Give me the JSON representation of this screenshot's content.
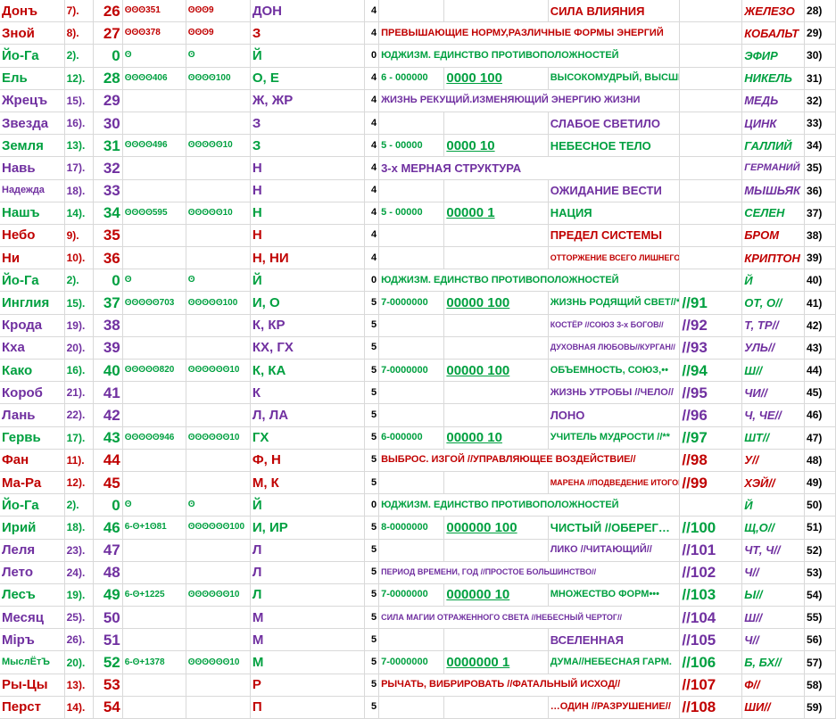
{
  "colors": {
    "red": "#c00000",
    "green": "#00a040",
    "purple": "#7030a0"
  },
  "rows": [
    {
      "name": "Донъ",
      "nc": "red",
      "idx": "7).",
      "ic": "red",
      "num": "26",
      "numc": "red",
      "b1": "ʘʘʘ351",
      "b2": "ʘʘʘ9",
      "letter": "ДОН",
      "lc": "purple",
      "five": "4",
      "code": "",
      "kc": "",
      "ul": "",
      "uc": "",
      "meaning": "",
      "mc": "",
      "m2": "СИЛА ВЛИЯНИЯ",
      "m2c": "red",
      "slash": "",
      "sc": "",
      "right": "ЖЕЛЕЗО",
      "rc": "red",
      "end": "28)"
    },
    {
      "name": "Зной",
      "nc": "red",
      "idx": "8).",
      "ic": "red",
      "num": "27",
      "numc": "red",
      "b1": "ʘʘʘ378",
      "b2": "ʘʘʘ9",
      "letter": "З",
      "lc": "red",
      "five": "4",
      "code": "",
      "kc": "",
      "ul": "",
      "uc": "",
      "meaning": "ПРЕВЫШАЮЩИЕ НОРМУ,РАЗЛИЧНЫЕ ФОРМЫ ЭНЕРГИЙ",
      "mc": "red",
      "m2": "",
      "m2c": "",
      "slash": "",
      "sc": "",
      "right": "КОБАЛЬТ",
      "rc": "red",
      "end": "29)"
    },
    {
      "name": "Йо-Га",
      "nc": "green",
      "idx": "2).",
      "ic": "green",
      "num": "0",
      "numc": "green",
      "b1": "ʘ",
      "b2": "ʘ",
      "letter": "Й",
      "lc": "green",
      "five": "0",
      "code": "",
      "kc": "",
      "ul": "",
      "uc": "",
      "meaning": "ЮДЖИЗМ. ЕДИНСТВО ПРОТИВОПОЛОЖНОСТЕЙ",
      "mc": "green",
      "m2": "",
      "m2c": "",
      "slash": "",
      "sc": "",
      "right": "ЭФИР",
      "rc": "green",
      "end": "30)"
    },
    {
      "name": "Ель",
      "nc": "green",
      "idx": "12).",
      "ic": "green",
      "num": "28",
      "numc": "green",
      "b1": "ʘʘʘʘ406",
      "b2": "ʘʘʘʘ100",
      "letter": "О, Е",
      "lc": "green",
      "five": "4",
      "code": "6 - 000000",
      "kc": "green",
      "ul": "0000 100",
      "uc": "green",
      "meaning": "",
      "mc": "",
      "m2": "ВЫСОКОМУДРЫЙ, ВЫСШИЙ",
      "m2c": "green",
      "slash": "",
      "sc": "",
      "right": "НИКЕЛЬ",
      "rc": "green",
      "end": "31)"
    },
    {
      "name": "Жрецъ",
      "nc": "purple",
      "idx": "15).",
      "ic": "purple",
      "num": "29",
      "numc": "purple",
      "b1": "",
      "b2": "",
      "letter": "Ж, ЖР",
      "lc": "purple",
      "five": "4",
      "code": "",
      "kc": "",
      "ul": "",
      "uc": "",
      "meaning": "ЖИЗНЬ РЕКУЩИЙ.ИЗМЕНЯЮЩИЙ ЭНЕРГИЮ ЖИЗНИ",
      "mc": "purple",
      "m2": "",
      "m2c": "",
      "slash": "",
      "sc": "",
      "right": "МЕДЬ",
      "rc": "purple",
      "end": "32)"
    },
    {
      "name": "Звезда",
      "nc": "purple",
      "idx": "16).",
      "ic": "purple",
      "num": "30",
      "numc": "purple",
      "b1": "",
      "b2": "",
      "letter": "З",
      "lc": "purple",
      "five": "4",
      "code": "",
      "kc": "",
      "ul": "",
      "uc": "",
      "meaning": "",
      "mc": "",
      "m2": "СЛАБОЕ СВЕТИЛО",
      "m2c": "purple",
      "slash": "",
      "sc": "",
      "right": "ЦИНК",
      "rc": "purple",
      "end": "33)"
    },
    {
      "name": "Земля",
      "nc": "green",
      "idx": "13).",
      "ic": "green",
      "num": "31",
      "numc": "green",
      "b1": "ʘʘʘʘ496",
      "b2": "ʘʘʘʘʘ10",
      "letter": "З",
      "lc": "green",
      "five": "4",
      "code": "5 - 00000",
      "kc": "green",
      "ul": "0000 10",
      "uc": "green",
      "meaning": "",
      "mc": "",
      "m2": "НЕБЕСНОЕ ТЕЛО",
      "m2c": "green",
      "slash": "",
      "sc": "",
      "right": "ГАЛЛИЙ",
      "rc": "green",
      "end": "34)"
    },
    {
      "name": "Навь",
      "nc": "purple",
      "idx": "17).",
      "ic": "purple",
      "num": "32",
      "numc": "purple",
      "b1": "",
      "b2": "",
      "letter": "Н",
      "lc": "purple",
      "five": "4",
      "code": "",
      "kc": "",
      "ul": "",
      "uc": "",
      "meaning": "3-х МЕРНАЯ СТРУКТУРА",
      "mc": "purple",
      "m2": "",
      "m2c": "",
      "slash": "",
      "sc": "",
      "right": "ГЕРМАНИЙ",
      "rc": "purple",
      "end": "35)"
    },
    {
      "name": "Надежда",
      "nc": "purple",
      "idx": "18).",
      "ic": "purple",
      "num": "33",
      "numc": "purple",
      "b1": "",
      "b2": "",
      "letter": "Н",
      "lc": "purple",
      "five": "4",
      "code": "",
      "kc": "",
      "ul": "",
      "uc": "",
      "meaning": "",
      "mc": "",
      "m2": "ОЖИДАНИЕ ВЕСТИ",
      "m2c": "purple",
      "slash": "",
      "sc": "",
      "right": "МЫШЬЯК",
      "rc": "purple",
      "end": "36)"
    },
    {
      "name": "Нашъ",
      "nc": "green",
      "idx": "14).",
      "ic": "green",
      "num": "34",
      "numc": "green",
      "b1": "ʘʘʘʘ595",
      "b2": "ʘʘʘʘʘ10",
      "letter": "Н",
      "lc": "green",
      "five": "4",
      "code": "5 - 00000",
      "kc": "green",
      "ul": "00000 1",
      "uc": "green",
      "meaning": "",
      "mc": "",
      "m2": "НАЦИЯ",
      "m2c": "green",
      "slash": "",
      "sc": "",
      "right": "СЕЛЕН",
      "rc": "green",
      "end": "37)"
    },
    {
      "name": "Небо",
      "nc": "red",
      "idx": "9).",
      "ic": "red",
      "num": "35",
      "numc": "red",
      "b1": "",
      "b2": "",
      "letter": "Н",
      "lc": "red",
      "five": "4",
      "code": "",
      "kc": "",
      "ul": "",
      "uc": "",
      "meaning": "",
      "mc": "",
      "m2": "ПРЕДЕЛ СИСТЕМЫ",
      "m2c": "red",
      "slash": "",
      "sc": "",
      "right": "БРОМ",
      "rc": "red",
      "end": "38)"
    },
    {
      "name": "Ни",
      "nc": "red",
      "idx": "10).",
      "ic": "red",
      "num": "36",
      "numc": "red",
      "b1": "",
      "b2": "",
      "letter": "Н, НИ",
      "lc": "red",
      "five": "4",
      "code": "",
      "kc": "",
      "ul": "",
      "uc": "",
      "meaning": "",
      "mc": "",
      "m2": "ОТТОРЖЕНИЕ ВСЕГО ЛИШНЕГО",
      "m2c": "red",
      "slash": "",
      "sc": "",
      "right": "КРИПТОН",
      "rc": "red",
      "end": "39)"
    },
    {
      "name": "Йо-Га",
      "nc": "green",
      "idx": "2).",
      "ic": "green",
      "num": "0",
      "numc": "green",
      "b1": "ʘ",
      "b2": "ʘ",
      "letter": "Й",
      "lc": "green",
      "five": "0",
      "code": "",
      "kc": "",
      "ul": "",
      "uc": "",
      "meaning": "ЮДЖИЗМ. ЕДИНСТВО ПРОТИВОПОЛОЖНОСТЕЙ",
      "mc": "green",
      "m2": "",
      "m2c": "",
      "slash": "",
      "sc": "",
      "right": "Й",
      "rc": "green",
      "end": "40)"
    },
    {
      "name": "Инглия",
      "nc": "green",
      "idx": "15).",
      "ic": "green",
      "num": "37",
      "numc": "green",
      "b1": "ʘʘʘʘʘ703",
      "b2": "ʘʘʘʘʘ100",
      "letter": "И, О",
      "lc": "green",
      "five": "5",
      "code": "7-0000000",
      "kc": "green",
      "ul": "00000 100",
      "uc": "green",
      "meaning": "",
      "mc": "",
      "m2": "ЖИЗНЬ РОДЯЩИЙ СВЕТ//*",
      "m2c": "green",
      "slash": "//91",
      "sc": "green",
      "right": "ОТ, О//",
      "rc": "green",
      "end": "41)"
    },
    {
      "name": "Крода",
      "nc": "purple",
      "idx": "19).",
      "ic": "purple",
      "num": "38",
      "numc": "purple",
      "b1": "",
      "b2": "",
      "letter": "К, КР",
      "lc": "purple",
      "five": "5",
      "code": "",
      "kc": "",
      "ul": "",
      "uc": "",
      "meaning": "",
      "mc": "",
      "m2": "КОСТЁР //СОЮЗ 3-х БОГОВ//",
      "m2c": "purple",
      "slash": "//92",
      "sc": "purple",
      "right": "Т, ТР//",
      "rc": "purple",
      "end": "42)"
    },
    {
      "name": "Кха",
      "nc": "purple",
      "idx": "20).",
      "ic": "purple",
      "num": "39",
      "numc": "purple",
      "b1": "",
      "b2": "",
      "letter": "КХ, ГХ",
      "lc": "purple",
      "five": "5",
      "code": "",
      "kc": "",
      "ul": "",
      "uc": "",
      "meaning": "",
      "mc": "",
      "m2": "ДУХОВНАЯ ЛЮБОВЬ//КУРГАН//",
      "m2c": "purple",
      "slash": "//93",
      "sc": "purple",
      "right": "УЛЬ//",
      "rc": "purple",
      "end": "43)"
    },
    {
      "name": "Како",
      "nc": "green",
      "idx": "16).",
      "ic": "green",
      "num": "40",
      "numc": "green",
      "b1": "ʘʘʘʘʘ820",
      "b2": "ʘʘʘʘʘʘ10",
      "letter": "К, КА",
      "lc": "green",
      "five": "5",
      "code": "7-0000000",
      "kc": "green",
      "ul": "00000 100",
      "uc": "green",
      "meaning": "",
      "mc": "",
      "m2": "ОБЪЕМНОСТЬ, СОЮЗ,••",
      "m2c": "green",
      "slash": "//94",
      "sc": "green",
      "right": "Ш//",
      "rc": "green",
      "end": "44)"
    },
    {
      "name": "Короб",
      "nc": "purple",
      "idx": "21).",
      "ic": "purple",
      "num": "41",
      "numc": "purple",
      "b1": "",
      "b2": "",
      "letter": "К",
      "lc": "purple",
      "five": "5",
      "code": "",
      "kc": "",
      "ul": "",
      "uc": "",
      "meaning": "",
      "mc": "",
      "m2": "ЖИЗНЬ УТРОБЫ //ЧЕЛО//",
      "m2c": "purple",
      "slash": "//95",
      "sc": "purple",
      "right": "ЧИ//",
      "rc": "purple",
      "end": "45)"
    },
    {
      "name": "Лань",
      "nc": "purple",
      "idx": "22).",
      "ic": "purple",
      "num": "42",
      "numc": "purple",
      "b1": "",
      "b2": "",
      "letter": "Л, ЛА",
      "lc": "purple",
      "five": "5",
      "code": "",
      "kc": "",
      "ul": "",
      "uc": "",
      "meaning": "",
      "mc": "",
      "m2": "ЛОНО",
      "m2c": "purple",
      "slash": "//96",
      "sc": "purple",
      "right": "Ч, ЧЕ//",
      "rc": "purple",
      "end": "46)"
    },
    {
      "name": "Гервь",
      "nc": "green",
      "idx": "17).",
      "ic": "green",
      "num": "43",
      "numc": "green",
      "b1": "ʘʘʘʘʘ946",
      "b2": "ʘʘʘʘʘʘ10",
      "letter": "ГХ",
      "lc": "green",
      "five": "5",
      "code": "6-000000",
      "kc": "green",
      "ul": "00000 10",
      "uc": "green",
      "meaning": "",
      "mc": "",
      "m2": "УЧИТЕЛЬ МУДРОСТИ //**",
      "m2c": "green",
      "slash": "//97",
      "sc": "green",
      "right": "ШТ//",
      "rc": "green",
      "end": "47)"
    },
    {
      "name": "Фан",
      "nc": "red",
      "idx": "11).",
      "ic": "red",
      "num": "44",
      "numc": "red",
      "b1": "",
      "b2": "",
      "letter": "Ф, Н",
      "lc": "red",
      "five": "5",
      "code": "",
      "kc": "",
      "ul": "",
      "uc": "",
      "meaning": "ВЫБРОС. ИЗГОЙ //УПРАВЛЯЮЩЕЕ ВОЗДЕЙСТВИЕ//",
      "mc": "red",
      "m2": "",
      "m2c": "",
      "slash": "//98",
      "sc": "red",
      "right": "У//",
      "rc": "red",
      "end": "48)"
    },
    {
      "name": "Ма-Ра",
      "nc": "red",
      "idx": "12).",
      "ic": "red",
      "num": "45",
      "numc": "red",
      "b1": "",
      "b2": "",
      "letter": "М, К",
      "lc": "red",
      "five": "5",
      "code": "",
      "kc": "",
      "ul": "",
      "uc": "",
      "meaning": "",
      "mc": "",
      "m2": "МАРЕНА //ПОДВЕДЕНИЕ ИТОГОВ//",
      "m2c": "red",
      "slash": "//99",
      "sc": "red",
      "right": "ХЭЙ//",
      "rc": "red",
      "end": "49)"
    },
    {
      "name": "Йо-Га",
      "nc": "green",
      "idx": "2).",
      "ic": "green",
      "num": "0",
      "numc": "green",
      "b1": "ʘ",
      "b2": "ʘ",
      "letter": "Й",
      "lc": "green",
      "five": "0",
      "code": "",
      "kc": "",
      "ul": "",
      "uc": "",
      "meaning": "ЮДЖИЗМ. ЕДИНСТВО ПРОТИВОПОЛОЖНОСТЕЙ",
      "mc": "green",
      "m2": "",
      "m2c": "",
      "slash": "",
      "sc": "",
      "right": "Й",
      "rc": "green",
      "end": "50)"
    },
    {
      "name": "Ирий",
      "nc": "green",
      "idx": "18).",
      "ic": "green",
      "num": "46",
      "numc": "green",
      "b1": "6-ʘ+1ʘ81",
      "b2": "ʘʘʘʘʘʘ100",
      "letter": "И, ИР",
      "lc": "green",
      "five": "5",
      "code": "8-0000000",
      "kc": "green",
      "ul": "000000 100",
      "uc": "green",
      "meaning": "",
      "mc": "",
      "m2": "ЧИСТЫЙ //ОБЕРЕГ…",
      "m2c": "green",
      "slash": "//100",
      "sc": "green",
      "right": "Щ,О//",
      "rc": "green",
      "end": "51)"
    },
    {
      "name": "Леля",
      "nc": "purple",
      "idx": "23).",
      "ic": "purple",
      "num": "47",
      "numc": "purple",
      "b1": "",
      "b2": "",
      "letter": "Л",
      "lc": "purple",
      "five": "5",
      "code": "",
      "kc": "",
      "ul": "",
      "uc": "",
      "meaning": "",
      "mc": "",
      "m2": "ЛИКО //ЧИТАЮЩИЙ//",
      "m2c": "purple",
      "slash": "//101",
      "sc": "purple",
      "right": "ЧТ, Ч//",
      "rc": "purple",
      "end": "52)"
    },
    {
      "name": "Лето",
      "nc": "purple",
      "idx": "24).",
      "ic": "purple",
      "num": "48",
      "numc": "purple",
      "b1": "",
      "b2": "",
      "letter": "Л",
      "lc": "purple",
      "five": "5",
      "code": "",
      "kc": "",
      "ul": "",
      "uc": "",
      "meaning": "ПЕРИОД ВРЕМЕНИ, ГОД //ПРОСТОЕ БОЛЬШИНСТВО//",
      "mc": "purple",
      "m2": "",
      "m2c": "",
      "slash": "//102",
      "sc": "purple",
      "right": "Ч//",
      "rc": "purple",
      "end": "53)"
    },
    {
      "name": "Лесъ",
      "nc": "green",
      "idx": "19).",
      "ic": "green",
      "num": "49",
      "numc": "green",
      "b1": "6-ʘ+1225",
      "b2": "ʘʘʘʘʘʘ10",
      "letter": "Л",
      "lc": "green",
      "five": "5",
      "code": "7-0000000",
      "kc": "green",
      "ul": "000000 10",
      "uc": "green",
      "meaning": "",
      "mc": "",
      "m2": "МНОЖЕСТВО ФОРМ•••",
      "m2c": "green",
      "slash": "//103",
      "sc": "green",
      "right": "Ы//",
      "rc": "green",
      "end": "54)"
    },
    {
      "name": "Месяц",
      "nc": "purple",
      "idx": "25).",
      "ic": "purple",
      "num": "50",
      "numc": "purple",
      "b1": "",
      "b2": "",
      "letter": "М",
      "lc": "purple",
      "five": "5",
      "code": "",
      "kc": "",
      "ul": "",
      "uc": "",
      "meaning": "СИЛА МАГИИ ОТРАЖЕННОГО СВЕТА //НЕБЕСНЫЙ ЧЕРТОГ//",
      "mc": "purple",
      "m2": "",
      "m2c": "",
      "slash": "//104",
      "sc": "purple",
      "right": "Ш//",
      "rc": "purple",
      "end": "55)"
    },
    {
      "name": "Міръ",
      "nc": "purple",
      "idx": "26).",
      "ic": "purple",
      "num": "51",
      "numc": "purple",
      "b1": "",
      "b2": "",
      "letter": "М",
      "lc": "purple",
      "five": "5",
      "code": "",
      "kc": "",
      "ul": "",
      "uc": "",
      "meaning": "",
      "mc": "",
      "m2": "ВСЕЛЕННАЯ",
      "m2c": "purple",
      "slash": "//105",
      "sc": "purple",
      "right": "Ч//",
      "rc": "purple",
      "end": "56)"
    },
    {
      "name": "МыслЁтЪ",
      "nc": "green",
      "idx": "20).",
      "ic": "green",
      "num": "52",
      "numc": "green",
      "b1": "6-ʘ+1378",
      "b2": "ʘʘʘʘʘʘ10",
      "letter": "М",
      "lc": "green",
      "five": "5",
      "code": "7-0000000",
      "kc": "green",
      "ul": "0000000 1",
      "uc": "green",
      "meaning": "",
      "mc": "",
      "m2": "ДУМА//НЕБЕСНАЯ ГАРМ.",
      "m2c": "green",
      "slash": "//106",
      "sc": "green",
      "right": "Б, БХ//",
      "rc": "green",
      "end": "57)"
    },
    {
      "name": "Ры-Цы",
      "nc": "red",
      "idx": "13).",
      "ic": "red",
      "num": "53",
      "numc": "red",
      "b1": "",
      "b2": "",
      "letter": "Р",
      "lc": "red",
      "five": "5",
      "code": "",
      "kc": "",
      "ul": "",
      "uc": "",
      "meaning": "РЫЧАТЬ, ВИБРИРОВАТЬ //ФАТАЛЬНЫЙ ИСХОД//",
      "mc": "red",
      "m2": "",
      "m2c": "",
      "slash": "//107",
      "sc": "red",
      "right": "Ф//",
      "rc": "red",
      "end": "58)"
    },
    {
      "name": "Перст",
      "nc": "red",
      "idx": "14).",
      "ic": "red",
      "num": "54",
      "numc": "red",
      "b1": "",
      "b2": "",
      "letter": "П",
      "lc": "red",
      "five": "5",
      "code": "",
      "kc": "",
      "ul": "",
      "uc": "",
      "meaning": "",
      "mc": "",
      "m2": "…ОДИН //РАЗРУШЕНИЕ//",
      "m2c": "red",
      "slash": "//108",
      "sc": "red",
      "right": "ШИ//",
      "rc": "red",
      "end": "59)"
    }
  ]
}
